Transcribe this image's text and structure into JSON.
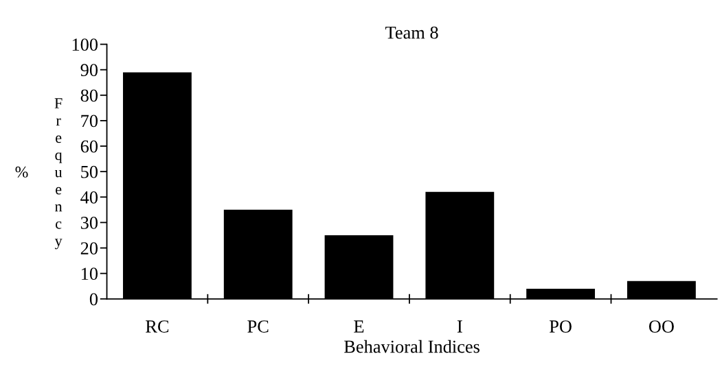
{
  "chart_data": {
    "type": "bar",
    "title": "Team 8",
    "xlabel": "Behavioral Indices",
    "ylabel": "% Frequency",
    "categories": [
      "RC",
      "PC",
      "E",
      "I",
      "PO",
      "OO"
    ],
    "values": [
      89,
      35,
      25,
      42,
      4,
      7
    ],
    "color": "#000000",
    "ylim": [
      0,
      100
    ],
    "yticks": [
      0,
      10,
      20,
      30,
      40,
      50,
      60,
      70,
      80,
      90,
      100
    ],
    "grid": false,
    "legend": false
  }
}
